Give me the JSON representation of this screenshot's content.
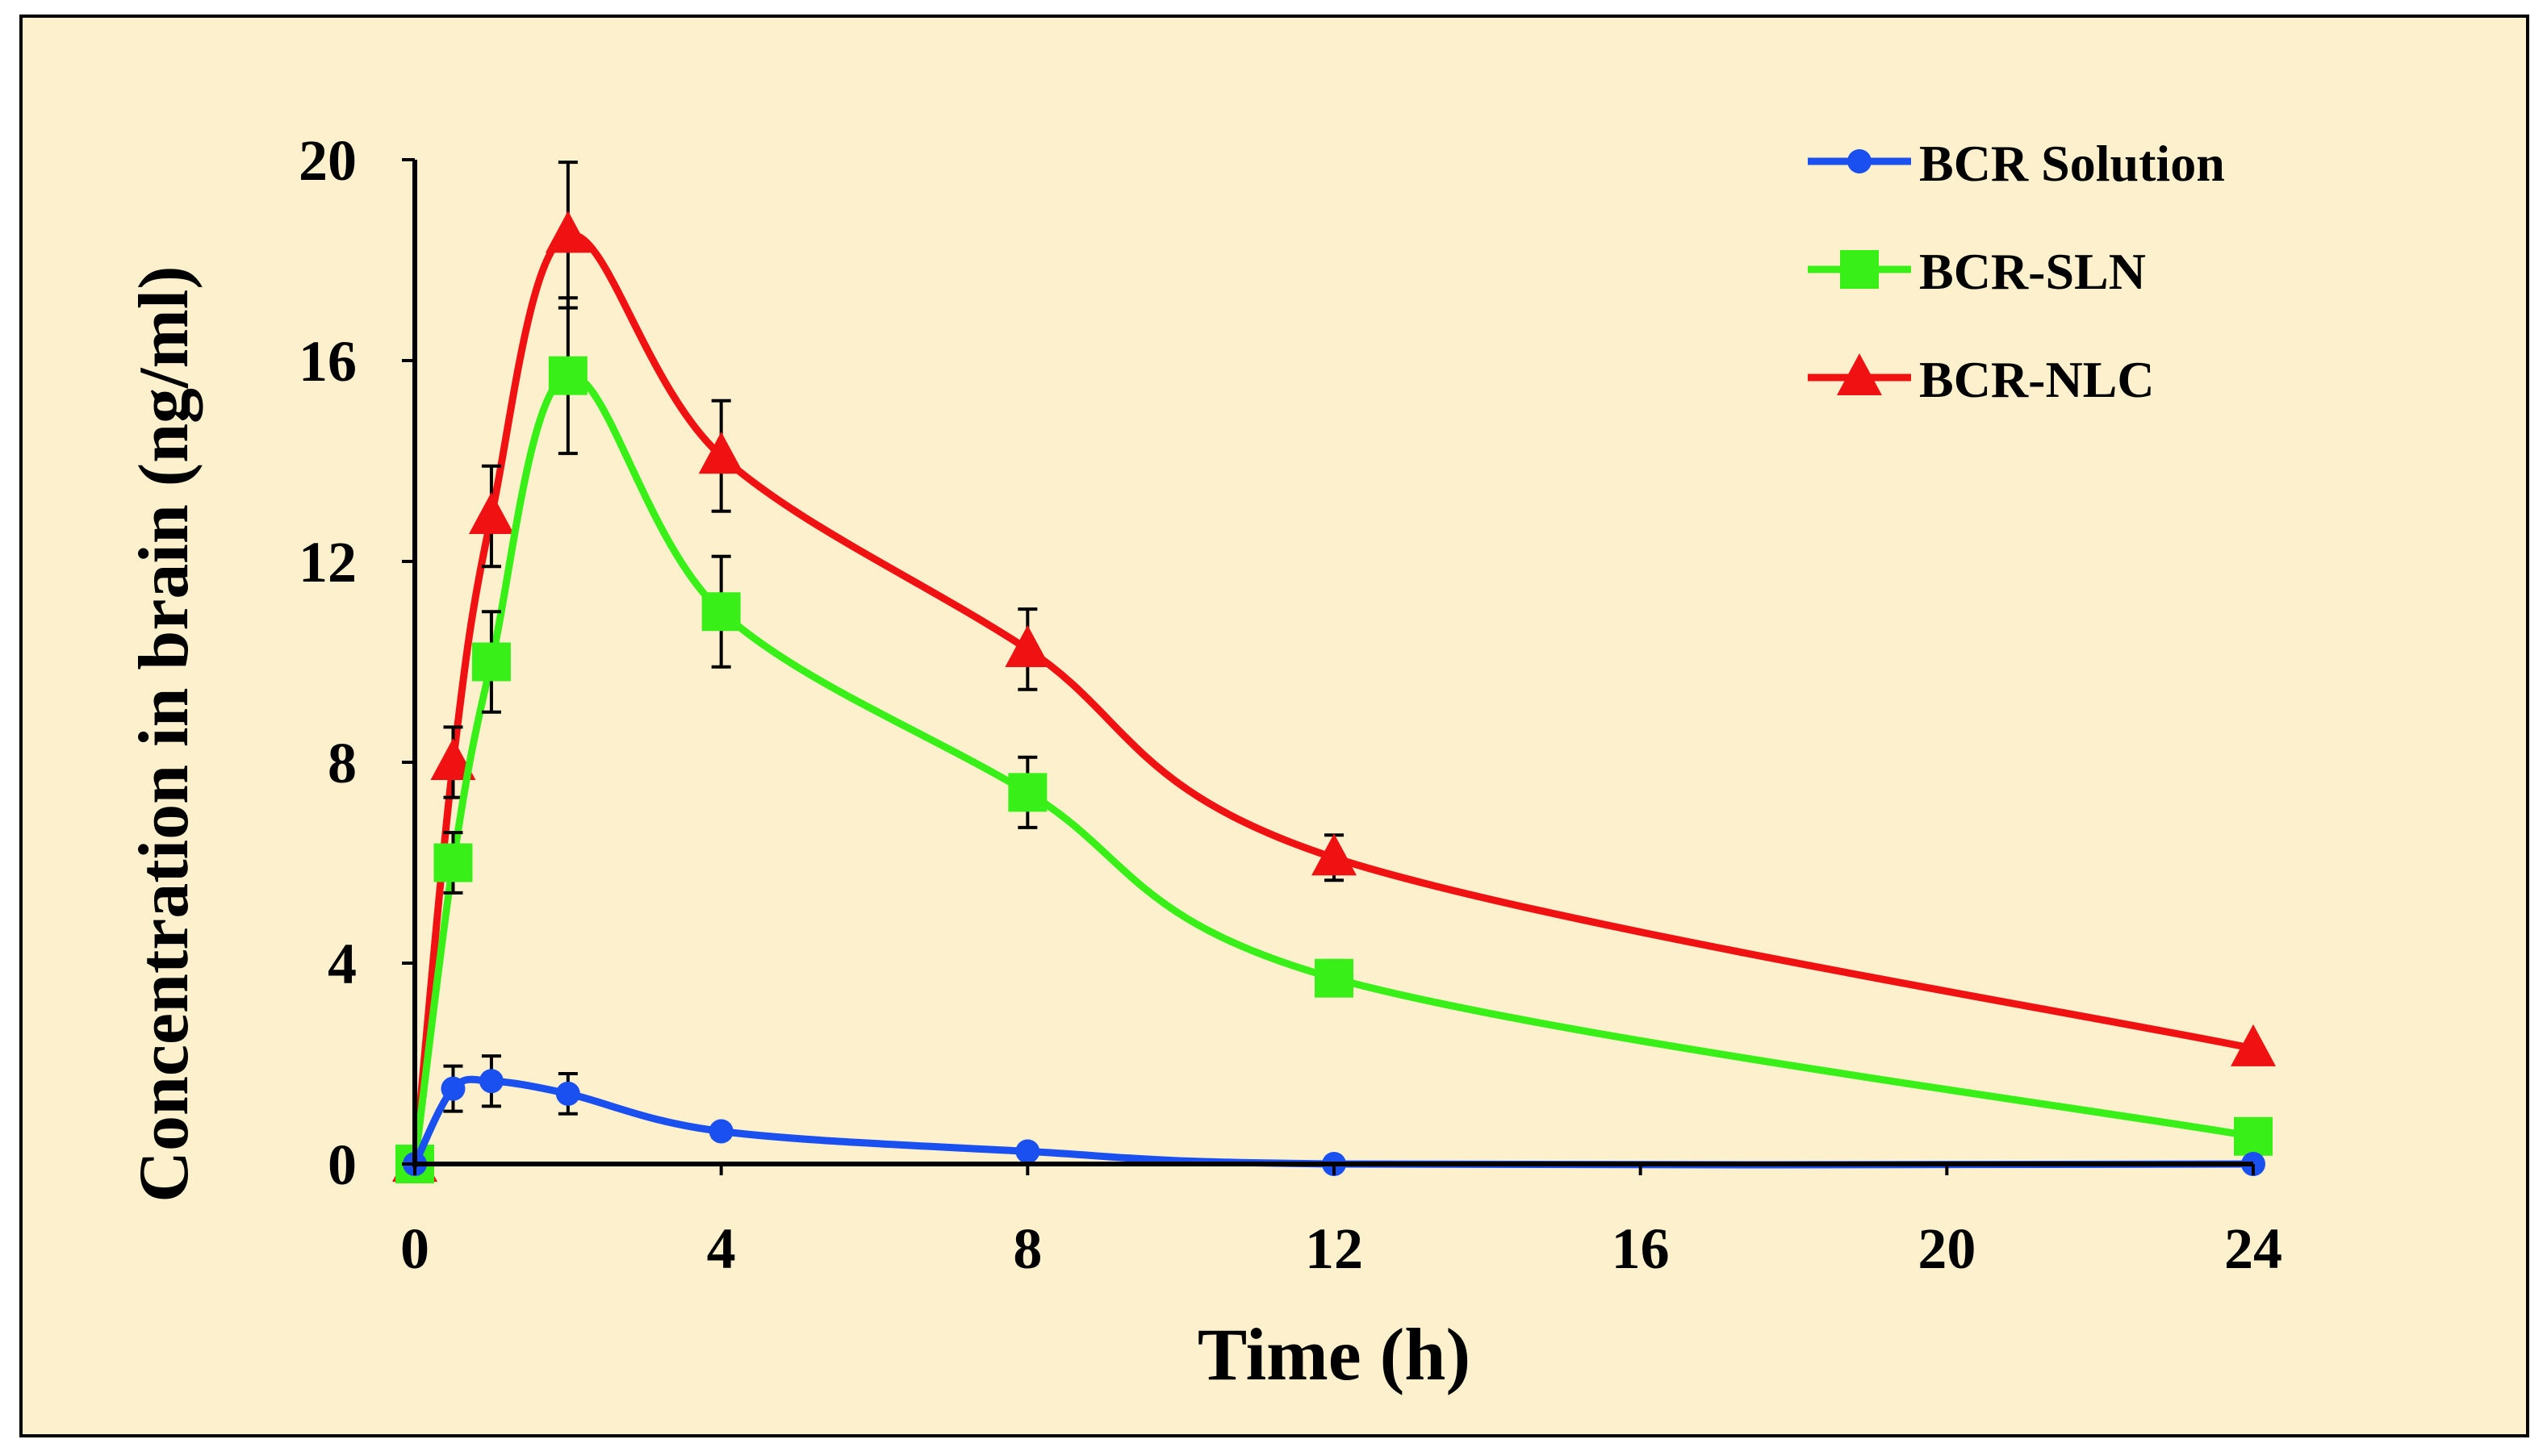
{
  "chart_data": {
    "type": "line",
    "title": "",
    "xlabel": "Time (h)",
    "ylabel": "Concentration in brain (ng/ml)",
    "xlim": [
      0,
      24
    ],
    "ylim": [
      0,
      20
    ],
    "xticks": [
      0,
      4,
      8,
      12,
      16,
      20,
      24
    ],
    "yticks": [
      0,
      4,
      8,
      12,
      16,
      20
    ],
    "grid": false,
    "legend_position": "top-right",
    "background_color": "#fdf0cc",
    "x": [
      0,
      0.5,
      1,
      2,
      4,
      8,
      12,
      24
    ],
    "series": [
      {
        "name": "BCR Solution",
        "color": "#1a4ff0",
        "marker": "circle",
        "values": [
          0,
          1.5,
          1.65,
          1.4,
          0.65,
          0.25,
          0,
          0
        ],
        "errors": [
          0,
          0.45,
          0.5,
          0.4,
          0.12,
          0.05,
          0,
          0
        ]
      },
      {
        "name": "BCR-SLN",
        "color": "#38f018",
        "marker": "square",
        "values": [
          0,
          6.0,
          10.0,
          15.7,
          11.0,
          7.4,
          3.7,
          0.55
        ],
        "errors": [
          0,
          0.6,
          1.0,
          1.55,
          1.1,
          0.7,
          0.35,
          0
        ]
      },
      {
        "name": "BCR-NLC",
        "color": "#f01212",
        "marker": "triangle",
        "values": [
          0,
          8.0,
          12.9,
          18.5,
          14.1,
          10.25,
          6.1,
          2.3
        ],
        "errors": [
          0,
          0.7,
          1.0,
          1.45,
          1.1,
          0.8,
          0.45,
          0
        ]
      }
    ]
  }
}
